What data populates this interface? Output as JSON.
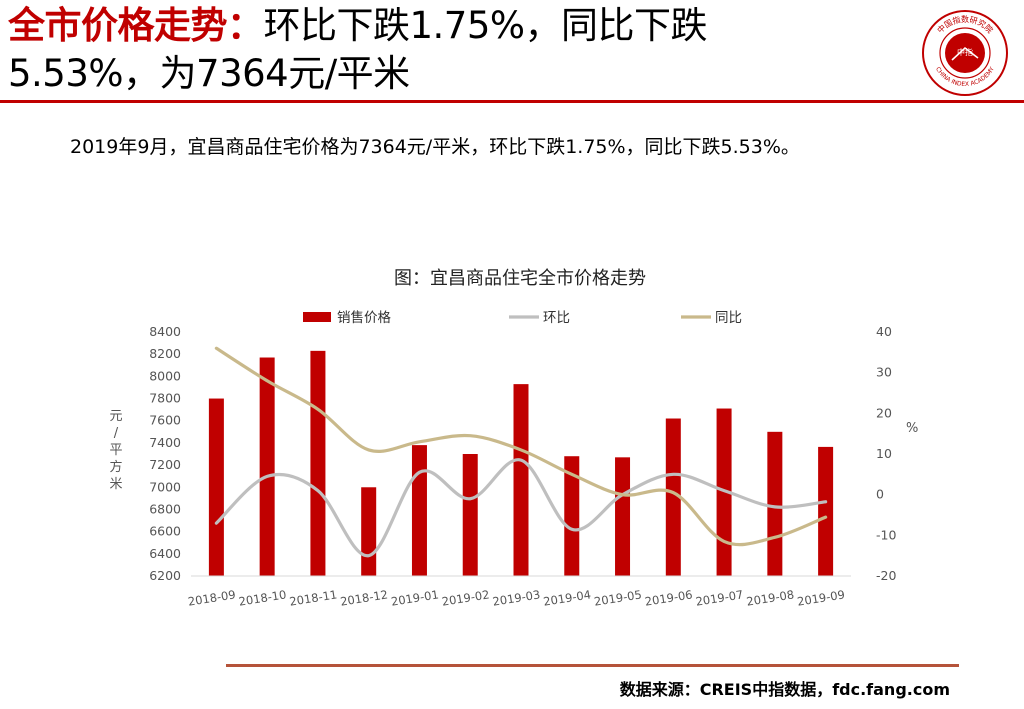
{
  "header": {
    "title_highlight": "全市价格走势：",
    "title_line1_rest": "环比下跌1.75%，同比下跌",
    "title_line2": "5.53%，为7364元/平米"
  },
  "logo": {
    "top_text": "中国指数研究院",
    "bottom_text": "CHINA INDEX ACADEMY",
    "center_text": "中指"
  },
  "summary": "2019年9月，宜昌商品住宅价格为7364元/平米，环比下跌1.75%，同比下跌5.53%。",
  "source": "数据来源：CREIS中指数据，fdc.fang.com",
  "colors": {
    "title_red": "#c00000",
    "bar": "#c00000",
    "mom_line": "#bfbfbf",
    "yoy_line": "#c9b98b",
    "axis_text": "#555555",
    "bottom_rule": "#b5533a"
  },
  "chart_data": {
    "type": "bar",
    "title": "图：宜昌商品住宅全市价格走势",
    "categories": [
      "2018-09",
      "2018-10",
      "2018-11",
      "2018-12",
      "2019-01",
      "2019-02",
      "2019-03",
      "2019-04",
      "2019-05",
      "2019-06",
      "2019-07",
      "2019-08",
      "2019-09"
    ],
    "series": [
      {
        "name": "销售价格",
        "type": "bar",
        "axis": "left",
        "values": [
          7800,
          8170,
          8230,
          7000,
          7380,
          7300,
          7930,
          7280,
          7270,
          7620,
          7710,
          7500,
          7364
        ]
      },
      {
        "name": "环比",
        "type": "line",
        "axis": "right",
        "values": [
          -7,
          4.5,
          1,
          -15,
          5.5,
          -1,
          8.5,
          -8.5,
          0,
          5,
          1,
          -3,
          -1.75
        ]
      },
      {
        "name": "同比",
        "type": "line",
        "axis": "right",
        "values": [
          36,
          28,
          21,
          11,
          13,
          14.5,
          11,
          5,
          0,
          0.5,
          -11.5,
          -10.5,
          -5.53
        ]
      }
    ],
    "ylabel_left": "元/平方米",
    "ylabel_right": "%",
    "ylim_left": [
      6200,
      8400
    ],
    "yticks_left": [
      6200,
      6400,
      6600,
      6800,
      7000,
      7200,
      7400,
      7600,
      7800,
      8000,
      8200,
      8400
    ],
    "ylim_right": [
      -20,
      40
    ],
    "yticks_right": [
      -20,
      -10,
      0,
      10,
      20,
      30,
      40
    ],
    "grid": false,
    "legend_position": "top"
  }
}
